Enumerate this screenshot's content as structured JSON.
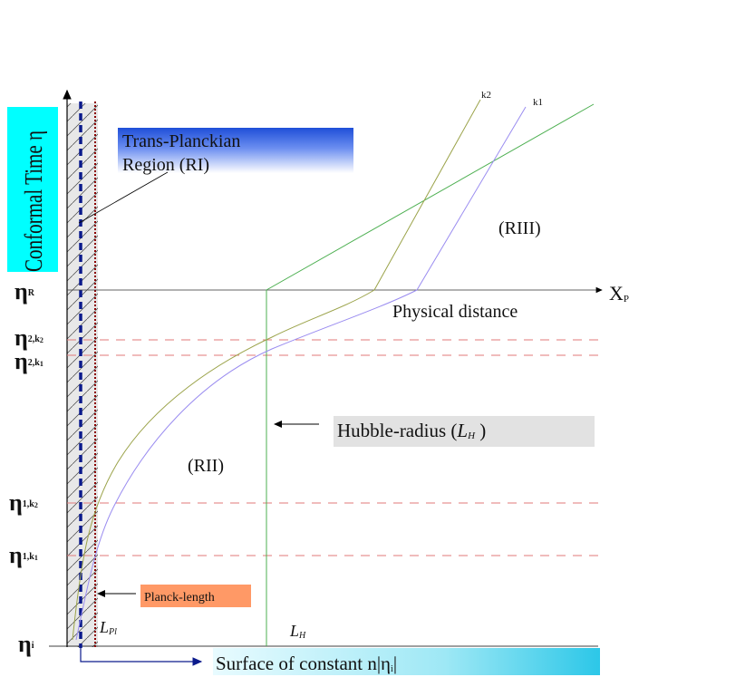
{
  "ylabel": "Conformal Time η",
  "xlabel": "X",
  "xlabel_sub": "P",
  "physical_distance": "Physical distance",
  "regions": {
    "trans_planckian_line1": "Trans-Planckian",
    "trans_planckian_line2": "Region (RI)",
    "r2": "(RII)",
    "r3": "(RIII)"
  },
  "curves": {
    "k1": "k1",
    "k2": "k2"
  },
  "eta_labels": {
    "eta_R": "η",
    "eta_R_sub": "R",
    "eta_2k2": "η",
    "eta_2k2_sub": "2,k",
    "eta_2k2_subsub": "2",
    "eta_2k1": "η",
    "eta_2k1_sub": "2,k",
    "eta_2k1_subsub": "1",
    "eta_1k2": "η",
    "eta_1k2_sub": "1,k",
    "eta_1k2_subsub": "2",
    "eta_1k1": "η",
    "eta_1k1_sub": "1,k",
    "eta_1k1_subsub": "1",
    "eta_i": "η",
    "eta_i_sub": "i"
  },
  "hubble_label": "Hubble-radius (",
  "hubble_L": "L",
  "hubble_sub": "H",
  "hubble_close": " )",
  "planck_label": "Planck-length",
  "L_pl": "L",
  "L_pl_sub": "Pl",
  "L_h": "L",
  "L_h_sub": "H",
  "surface_label": "Surface of constant n|η",
  "surface_sub": "i",
  "surface_close": "|",
  "colors": {
    "cyan": "#00ffff",
    "blue_box": "#1f4fd8",
    "salmon": "#ff9966",
    "green": "#4caf50",
    "olive": "#9ba34a",
    "lavender": "#9a8cf0",
    "dashed_red": "#e07a7a",
    "navy": "#0b1a8c",
    "dark_red": "#8b0000",
    "gray_box": "#e2e2e2"
  }
}
